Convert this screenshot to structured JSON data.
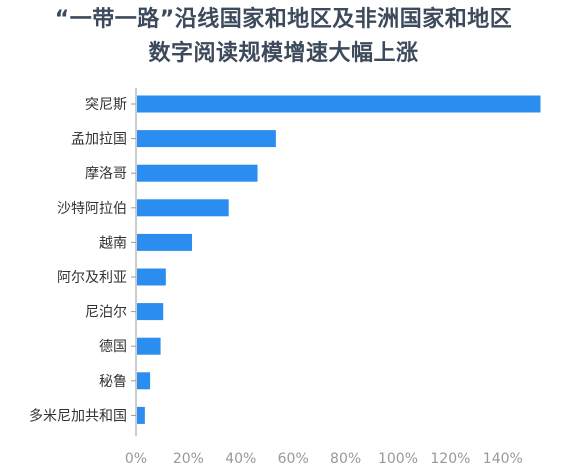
{
  "chart_data": {
    "type": "bar",
    "orientation": "horizontal",
    "title": "“一带一路”沿线国家和地区及非洲国家和地区",
    "subtitle": "数字阅读规模增速大幅上涨",
    "categories": [
      "突尼斯",
      "孟加拉国",
      "摩洛哥",
      "沙特阿拉伯",
      "越南",
      "阿尔及利亚",
      "尼泊尔",
      "德国",
      "秘鲁",
      "多米尼加共和国"
    ],
    "values": [
      154,
      53,
      46,
      35,
      21,
      11,
      10,
      9,
      5,
      3
    ],
    "value_unit": "%",
    "xlim": [
      0,
      150
    ],
    "xticks": [
      0,
      20,
      40,
      60,
      80,
      100,
      120,
      140
    ],
    "xtick_labels": [
      "0%",
      "20%",
      "40%",
      "60%",
      "80%",
      "100%",
      "120%",
      "140%"
    ],
    "bar_color": "#2b8def",
    "axis_color": "#9a9a9a",
    "grid": false,
    "legend": "none"
  }
}
